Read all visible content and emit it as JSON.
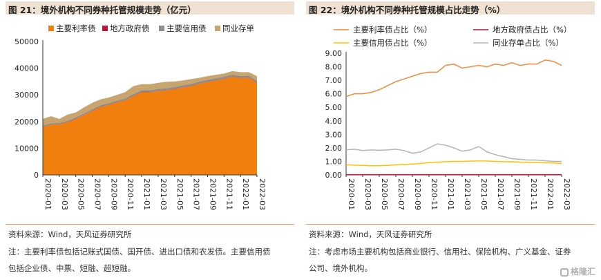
{
  "left": {
    "title": "图 21：境外机构不同券种托管规模走势（亿元）",
    "source": "资料来源：Wind，天风证券研究所",
    "note_line1": "注：主要利率债包括记账式国债、国开债、进出口债和农发债。主要信用债",
    "note_line2": "包括企业债、中票、短融、超短融。"
  },
  "right": {
    "title": "图 22：境外机构不同券种托管规模占比走势（%）",
    "source": "资料来源：Wind，天风证券研究所",
    "note_line1": "注：考虑市场主要机构包括商业银行、信用社、保险机构、广义基金、证券",
    "note_line2": "公司、境外机构。"
  },
  "watermark": "格隆汇",
  "colors": {
    "rate": "#f07f0e",
    "local": "#c0143c",
    "credit": "#8c8c8c",
    "cd": "#c8a46e",
    "rate_line": "#f08a3a",
    "local_line": "#c0143c",
    "credit_line": "#ffc000",
    "cd_line": "#b4b4b4",
    "accent": "#e9a06a"
  },
  "chart_data": [
    {
      "type": "area",
      "stacked": true,
      "title": "图 21：境外机构不同券种托管规模走势（亿元）",
      "x": [
        "2020-01",
        "2020-02",
        "2020-03",
        "2020-04",
        "2020-05",
        "2020-06",
        "2020-07",
        "2020-08",
        "2020-09",
        "2020-10",
        "2020-11",
        "2020-12",
        "2021-01",
        "2021-02",
        "2021-03",
        "2021-04",
        "2021-05",
        "2021-06",
        "2021-07",
        "2021-08",
        "2021-09",
        "2021-10",
        "2021-11",
        "2021-12",
        "2022-01",
        "2022-02",
        "2022-03"
      ],
      "xticks": [
        "2020-01",
        "2020-03",
        "2020-05",
        "2020-07",
        "2020-09",
        "2020-11",
        "2021-01",
        "2021-03",
        "2021-05",
        "2021-07",
        "2021-09",
        "2021-11",
        "2022-01",
        "2022-03"
      ],
      "ylim": [
        0,
        50000
      ],
      "yticks": [
        0,
        10000,
        20000,
        30000,
        40000,
        50000
      ],
      "series": [
        {
          "name": "主要利率债",
          "values": [
            18000,
            18800,
            19000,
            19800,
            21000,
            22500,
            24000,
            25500,
            26300,
            27200,
            28000,
            29600,
            31000,
            31000,
            31500,
            31700,
            32200,
            32800,
            33300,
            34200,
            34800,
            35400,
            36000,
            36800,
            36300,
            36400,
            34500
          ]
        },
        {
          "name": "地方政府债",
          "values": [
            80,
            80,
            80,
            80,
            80,
            80,
            80,
            80,
            80,
            80,
            80,
            80,
            80,
            80,
            80,
            80,
            80,
            80,
            80,
            80,
            80,
            80,
            80,
            80,
            80,
            80,
            80
          ]
        },
        {
          "name": "主要信用债",
          "values": [
            450,
            450,
            440,
            440,
            460,
            480,
            500,
            520,
            540,
            560,
            580,
            600,
            620,
            640,
            650,
            660,
            670,
            680,
            690,
            700,
            700,
            700,
            700,
            700,
            700,
            700,
            700
          ]
        },
        {
          "name": "同业存单",
          "values": [
            2470,
            2670,
            1480,
            2280,
            1860,
            2240,
            2420,
            2200,
            2080,
            2160,
            2340,
            3020,
            2300,
            2280,
            2270,
            2460,
            2050,
            1840,
            1830,
            1420,
            1420,
            1320,
            1220,
            1320,
            1420,
            1320,
            1720
          ]
        }
      ]
    },
    {
      "type": "line",
      "title": "图 22：境外机构不同券种托管规模占比走势（%）",
      "x": [
        "2020-01",
        "2020-02",
        "2020-03",
        "2020-04",
        "2020-05",
        "2020-06",
        "2020-07",
        "2020-08",
        "2020-09",
        "2020-10",
        "2020-11",
        "2020-12",
        "2021-01",
        "2021-02",
        "2021-03",
        "2021-04",
        "2021-05",
        "2021-06",
        "2021-07",
        "2021-08",
        "2021-09",
        "2021-10",
        "2021-11",
        "2021-12",
        "2022-01",
        "2022-02",
        "2022-03"
      ],
      "xticks": [
        "2020-01",
        "2020-03",
        "2020-05",
        "2020-07",
        "2020-09",
        "2020-11",
        "2021-01",
        "2021-03",
        "2021-05",
        "2021-07",
        "2021-09",
        "2021-11",
        "2022-01",
        "2022-03"
      ],
      "ylim": [
        0,
        9
      ],
      "yticks": [
        "0.00",
        "1.00",
        "2.00",
        "3.00",
        "4.00",
        "5.00",
        "6.00",
        "7.00",
        "8.00",
        "9.00"
      ],
      "series": [
        {
          "name": "主要利率债占比（%）",
          "values": [
            5.8,
            6.0,
            6.0,
            6.1,
            6.3,
            6.6,
            6.9,
            7.1,
            7.3,
            7.5,
            7.6,
            7.6,
            8.1,
            8.2,
            7.9,
            8.0,
            8.1,
            8.0,
            8.2,
            8.1,
            8.3,
            8.1,
            8.2,
            8.2,
            8.5,
            8.4,
            8.1
          ]
        },
        {
          "name": "地方政府债占比（%）",
          "values": [
            0.02,
            0.02,
            0.02,
            0.02,
            0.02,
            0.02,
            0.02,
            0.02,
            0.02,
            0.02,
            0.02,
            0.02,
            0.02,
            0.02,
            0.02,
            0.02,
            0.02,
            0.02,
            0.02,
            0.02,
            0.02,
            0.02,
            0.02,
            0.02,
            0.02,
            0.02,
            0.02
          ]
        },
        {
          "name": "主要信用债占比（%）",
          "values": [
            0.75,
            0.72,
            0.7,
            0.68,
            0.68,
            0.7,
            0.75,
            0.78,
            0.8,
            0.85,
            0.9,
            0.95,
            0.98,
            1.0,
            1.0,
            1.02,
            1.03,
            1.03,
            1.0,
            0.98,
            0.97,
            0.95,
            0.93,
            0.92,
            0.9,
            0.88,
            0.85
          ]
        },
        {
          "name": "同业存单占比（%）",
          "values": [
            1.85,
            1.9,
            1.8,
            1.85,
            1.82,
            1.85,
            1.9,
            1.8,
            1.6,
            1.7,
            2.0,
            2.3,
            2.2,
            2.0,
            1.75,
            1.85,
            2.1,
            1.7,
            1.5,
            1.35,
            1.2,
            1.15,
            1.1,
            1.1,
            1.05,
            1.0,
            1.0
          ]
        }
      ]
    }
  ]
}
